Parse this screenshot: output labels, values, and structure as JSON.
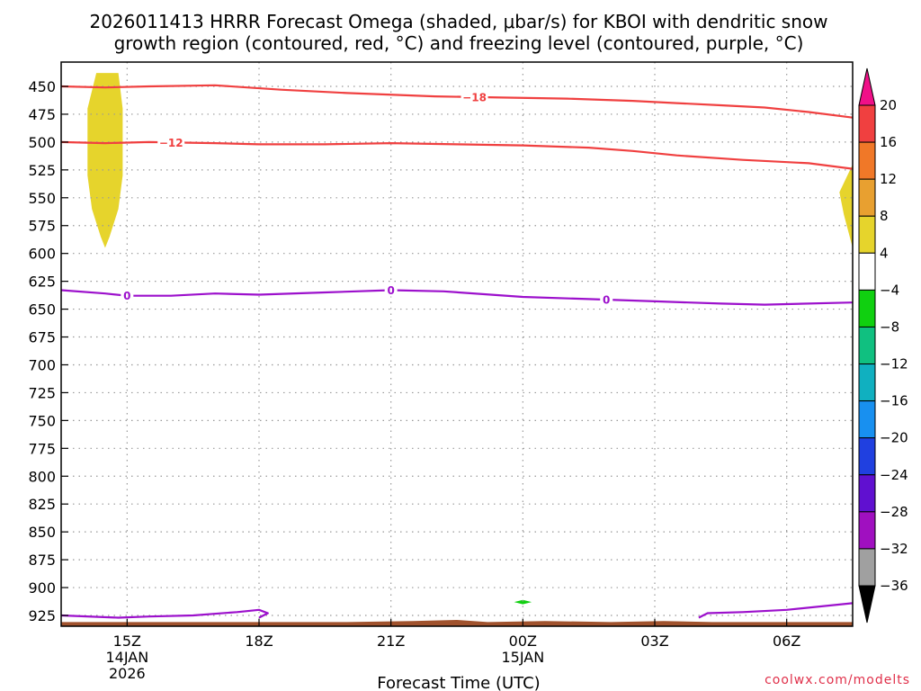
{
  "chart_data": {
    "type": "heatmap",
    "title_lines": [
      "2026011413 HRRR Forecast Omega (shaded, μbar/s) for KBOI with dendritic snow",
      "growth region (contoured, red, °C) and freezing level (contoured, purple, °C)"
    ],
    "xlabel": "Forecast Time (UTC)",
    "credit": "coolwx.com/modelts",
    "xlim": [
      13.5,
      31.5
    ],
    "ylim": [
      438,
      935
    ],
    "x_ticks": [
      {
        "x": 15,
        "lines": [
          "15Z",
          "14JAN",
          "2026"
        ]
      },
      {
        "x": 18,
        "lines": [
          "18Z"
        ]
      },
      {
        "x": 21,
        "lines": [
          "21Z"
        ]
      },
      {
        "x": 24,
        "lines": [
          "00Z",
          "15JAN"
        ]
      },
      {
        "x": 27,
        "lines": [
          "03Z"
        ]
      },
      {
        "x": 30,
        "lines": [
          "06Z"
        ]
      }
    ],
    "y_ticks": [
      450,
      475,
      500,
      525,
      550,
      575,
      600,
      625,
      650,
      675,
      700,
      725,
      750,
      775,
      800,
      825,
      850,
      875,
      900,
      925
    ],
    "colorbar": {
      "labels": [
        "20",
        "16",
        "12",
        "8",
        "4",
        "−4",
        "−8",
        "−12",
        "−16",
        "−20",
        "−24",
        "−28",
        "−32",
        "−36"
      ],
      "bins": [
        {
          "from": 16,
          "to": 20,
          "color": "#f04040"
        },
        {
          "from": 12,
          "to": 16,
          "color": "#f07828"
        },
        {
          "from": 8,
          "to": 12,
          "color": "#e8a030"
        },
        {
          "from": 4,
          "to": 8,
          "color": "#e6d42c"
        },
        {
          "from": -4,
          "to": 4,
          "color": "#ffffff"
        },
        {
          "from": -8,
          "to": -4,
          "color": "#10d010"
        },
        {
          "from": -12,
          "to": -8,
          "color": "#10c080"
        },
        {
          "from": -16,
          "to": -12,
          "color": "#10b0c0"
        },
        {
          "from": -20,
          "to": -16,
          "color": "#1890f0"
        },
        {
          "from": -24,
          "to": -20,
          "color": "#2040e0"
        },
        {
          "from": -28,
          "to": -24,
          "color": "#6010d0"
        },
        {
          "from": -32,
          "to": -28,
          "color": "#a010c0"
        },
        {
          "from": -36,
          "to": -32,
          "color": "#a0a0a0"
        }
      ],
      "top_arrow_color": "#f01088",
      "bottom_arrow_color": "#000000"
    },
    "contours": [
      {
        "name": "-18",
        "color": "#f04040",
        "label_at": 22.9,
        "points": [
          [
            13.5,
            450
          ],
          [
            14.5,
            451
          ],
          [
            15.5,
            450
          ],
          [
            17,
            449
          ],
          [
            18.5,
            453
          ],
          [
            20,
            456
          ],
          [
            22,
            459
          ],
          [
            23.5,
            460
          ],
          [
            25,
            461
          ],
          [
            26.5,
            463
          ],
          [
            27.5,
            465
          ],
          [
            28.5,
            467
          ],
          [
            29.5,
            469
          ],
          [
            30.5,
            473
          ],
          [
            31.5,
            478
          ]
        ]
      },
      {
        "name": "-12",
        "color": "#f04040",
        "label_at": 16.0,
        "points": [
          [
            13.5,
            500
          ],
          [
            14.5,
            501
          ],
          [
            15.5,
            500
          ],
          [
            17,
            501
          ],
          [
            18,
            502
          ],
          [
            19.5,
            502
          ],
          [
            21,
            501
          ],
          [
            22.5,
            502
          ],
          [
            24,
            503
          ],
          [
            25.5,
            505
          ],
          [
            26.5,
            508
          ],
          [
            27.5,
            512
          ],
          [
            29,
            516
          ],
          [
            30.5,
            519
          ],
          [
            31.5,
            524
          ]
        ]
      },
      {
        "name": "0",
        "color": "#9c10cc",
        "label_at": 15.0,
        "points": [
          [
            13.5,
            633
          ],
          [
            14.5,
            636
          ],
          [
            15,
            638
          ],
          [
            16,
            638
          ],
          [
            17,
            636
          ],
          [
            18,
            637
          ],
          [
            19.5,
            635
          ],
          [
            21,
            633
          ],
          [
            22.2,
            634
          ],
          [
            24,
            639
          ],
          [
            25.5,
            641
          ],
          [
            27,
            643
          ],
          [
            28.5,
            645
          ],
          [
            29.5,
            646
          ],
          [
            31.5,
            644
          ]
        ]
      },
      {
        "name": "0",
        "color": "#9c10cc",
        "label_at": 21.0,
        "points": []
      },
      {
        "name": "0",
        "color": "#9c10cc",
        "label_at": 25.9,
        "points": []
      },
      {
        "name": "",
        "color": "#9c10cc",
        "label_at": null,
        "points": [
          [
            13.5,
            925
          ],
          [
            14.8,
            927
          ],
          [
            15.5,
            926
          ],
          [
            16.5,
            925
          ],
          [
            17.5,
            922
          ],
          [
            18,
            920
          ],
          [
            18.2,
            923
          ],
          [
            18.0,
            927
          ]
        ]
      },
      {
        "name": "",
        "color": "#9c10cc",
        "label_at": null,
        "points": [
          [
            28.0,
            927
          ],
          [
            28.2,
            923
          ],
          [
            29.0,
            922
          ],
          [
            30.0,
            920
          ],
          [
            31.5,
            914
          ]
        ]
      }
    ],
    "shaded_regions": [
      {
        "value_bin": "4 to 8",
        "color": "#e6d42c",
        "points": [
          [
            14.3,
            438
          ],
          [
            14.8,
            438
          ],
          [
            14.9,
            470
          ],
          [
            14.9,
            530
          ],
          [
            14.8,
            560
          ],
          [
            14.6,
            585
          ],
          [
            14.5,
            595
          ],
          [
            14.4,
            585
          ],
          [
            14.2,
            560
          ],
          [
            14.1,
            530
          ],
          [
            14.1,
            470
          ]
        ]
      },
      {
        "value_bin": "4 to 8",
        "color": "#e6d42c",
        "points": [
          [
            31.5,
            520
          ],
          [
            31.2,
            545
          ],
          [
            31.3,
            565
          ],
          [
            31.5,
            595
          ]
        ]
      },
      {
        "value_bin": "-8 to -4",
        "color": "#10d010",
        "points": [
          [
            23.8,
            913
          ],
          [
            24.0,
            911
          ],
          [
            24.2,
            913
          ],
          [
            24.0,
            915
          ]
        ]
      }
    ],
    "terrain": {
      "color": "#a0522d",
      "points": [
        [
          13.5,
          935
        ],
        [
          13.5,
          931
        ],
        [
          15,
          931
        ],
        [
          20,
          931
        ],
        [
          21.5,
          930
        ],
        [
          22.5,
          929
        ],
        [
          23.2,
          931
        ],
        [
          24.5,
          930
        ],
        [
          26,
          931
        ],
        [
          27.2,
          930
        ],
        [
          28.3,
          931
        ],
        [
          31.5,
          931
        ],
        [
          31.5,
          935
        ]
      ]
    }
  }
}
